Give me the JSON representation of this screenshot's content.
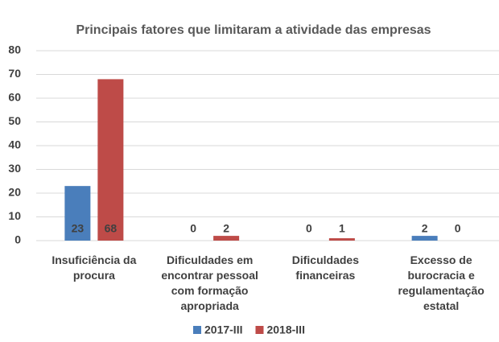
{
  "chart_data": {
    "type": "bar",
    "title": "Principais fatores que limitaram a atividade das empresas",
    "categories": [
      "Insuficiência da procura",
      "Dificuldades em encontrar pessoal com formação apropriada",
      "Dificuldades financeiras",
      "Excesso de burocracia e regulamentação estatal"
    ],
    "series": [
      {
        "name": "2017-III",
        "color": "#4a7ebb",
        "values": [
          23,
          0,
          0,
          2
        ]
      },
      {
        "name": "2018-III",
        "color": "#be4b48",
        "values": [
          68,
          2,
          1,
          0
        ]
      }
    ],
    "ylim": [
      0,
      80
    ],
    "yticks": [
      0,
      10,
      20,
      30,
      40,
      50,
      60,
      70,
      80
    ],
    "grid": true,
    "legend": "bottom"
  }
}
